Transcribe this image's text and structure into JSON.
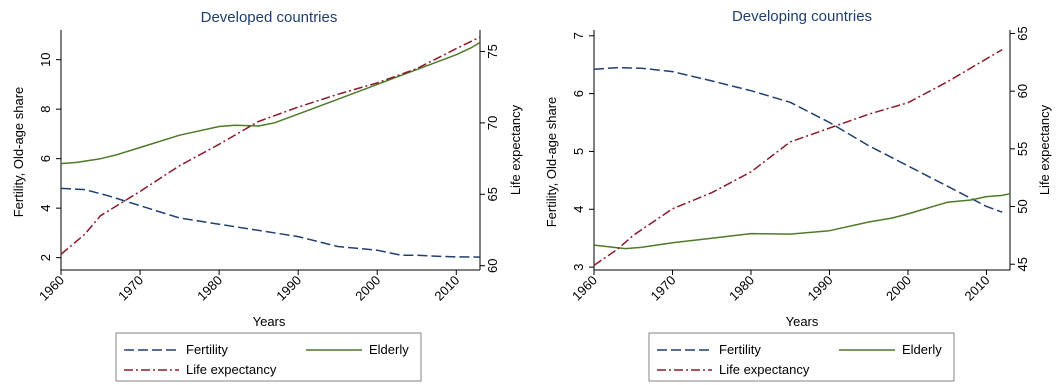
{
  "charts": [
    {
      "title": "Developed countries",
      "xlabel": "Years",
      "ylabel_left": "Fertility, Old-age share",
      "ylabel_right": "Life expectancy",
      "x_ticks": [
        "1960",
        "1970",
        "1980",
        "1990",
        "2000",
        "2010"
      ],
      "y_left_ticks": [
        "2",
        "4",
        "6",
        "8",
        "10"
      ],
      "y_right_ticks": [
        "60",
        "65",
        "70",
        "75"
      ],
      "legend": {
        "fertility": "Fertility",
        "elderly": "Elderly",
        "life": "Life expectancy"
      }
    },
    {
      "title": "Developing countries",
      "xlabel": "Years",
      "ylabel_left": "Fertility, Old-age share",
      "ylabel_right": "Life expectancy",
      "x_ticks": [
        "1960",
        "1970",
        "1980",
        "1990",
        "2000",
        "2010"
      ],
      "y_left_ticks": [
        "3",
        "4",
        "5",
        "6",
        "7"
      ],
      "y_right_ticks": [
        "45",
        "50",
        "55",
        "60",
        "65"
      ],
      "legend": {
        "fertility": "Fertility",
        "elderly": "Elderly",
        "life": "Life expectancy"
      }
    }
  ],
  "colors": {
    "fertility": "#1f3f6e",
    "elderly": "#4f7a2a",
    "life": "#8b1a2b",
    "title": "#1f3f6e"
  },
  "chart_data": [
    {
      "type": "line",
      "title": "Developed countries",
      "xlabel": "Years",
      "ylabel": "Fertility, Old-age share",
      "y2label": "Life expectancy",
      "xlim": [
        1960,
        2013
      ],
      "ylim": [
        1.5,
        11.2
      ],
      "y2lim": [
        59.7,
        76.5
      ],
      "series": [
        {
          "name": "Fertility",
          "axis": "left",
          "style": "dashed",
          "x": [
            1960,
            1963,
            1966,
            1970,
            1975,
            1980,
            1985,
            1990,
            1995,
            2000,
            2003,
            2005,
            2008,
            2010,
            2013
          ],
          "y": [
            4.8,
            4.75,
            4.5,
            4.1,
            3.6,
            3.35,
            3.1,
            2.85,
            2.45,
            2.3,
            2.1,
            2.1,
            2.05,
            2.03,
            2.02
          ]
        },
        {
          "name": "Elderly",
          "axis": "left",
          "style": "solid",
          "x": [
            1960,
            1962,
            1965,
            1967,
            1970,
            1975,
            1980,
            1982,
            1985,
            1987,
            1990,
            1995,
            2000,
            2005,
            2010,
            2012,
            2013
          ],
          "y": [
            5.8,
            5.85,
            6.0,
            6.15,
            6.45,
            6.95,
            7.3,
            7.35,
            7.32,
            7.45,
            7.8,
            8.4,
            9.0,
            9.6,
            10.2,
            10.5,
            10.7
          ]
        },
        {
          "name": "Life expectancy",
          "axis": "right",
          "style": "dashdot",
          "x": [
            1960,
            1963,
            1965,
            1970,
            1975,
            1980,
            1985,
            1990,
            1995,
            2000,
            2005,
            2010,
            2013
          ],
          "y": [
            60.8,
            62.2,
            63.5,
            65.2,
            67.0,
            68.5,
            70.1,
            71.1,
            72.0,
            72.8,
            73.8,
            75.2,
            76.0
          ]
        }
      ]
    },
    {
      "type": "line",
      "title": "Developing countries",
      "xlabel": "Years",
      "ylabel": "Fertility, Old-age share",
      "y2label": "Life expectancy",
      "xlim": [
        1960,
        2013
      ],
      "ylim": [
        2.95,
        7.1
      ],
      "y2lim": [
        44.5,
        65.3
      ],
      "series": [
        {
          "name": "Fertility",
          "axis": "left",
          "style": "dashed",
          "x": [
            1960,
            1963,
            1966,
            1970,
            1975,
            1980,
            1985,
            1990,
            1995,
            2000,
            2005,
            2010,
            2012
          ],
          "y": [
            6.42,
            6.45,
            6.44,
            6.38,
            6.22,
            6.05,
            5.85,
            5.5,
            5.1,
            4.75,
            4.4,
            4.05,
            3.95
          ]
        },
        {
          "name": "Elderly",
          "axis": "left",
          "style": "solid",
          "x": [
            1960,
            1962,
            1964,
            1966,
            1970,
            1975,
            1980,
            1985,
            1990,
            1995,
            1998,
            2000,
            2005,
            2008,
            2010,
            2012,
            2013
          ],
          "y": [
            3.38,
            3.35,
            3.32,
            3.34,
            3.42,
            3.5,
            3.58,
            3.57,
            3.63,
            3.78,
            3.85,
            3.92,
            4.12,
            4.16,
            4.22,
            4.24,
            4.27
          ]
        },
        {
          "name": "Life expectancy",
          "axis": "right",
          "style": "dashdot",
          "x": [
            1960,
            1963,
            1965,
            1970,
            1975,
            1980,
            1985,
            1990,
            1995,
            2000,
            2005,
            2010,
            2012
          ],
          "y": [
            44.9,
            46.3,
            47.5,
            49.8,
            51.2,
            53.0,
            55.6,
            56.8,
            58.0,
            59.0,
            60.8,
            62.8,
            63.6
          ]
        }
      ]
    }
  ]
}
